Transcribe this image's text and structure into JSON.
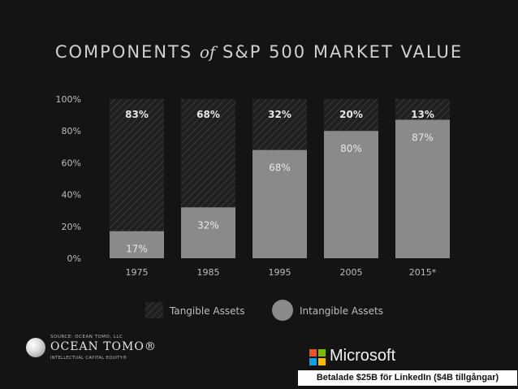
{
  "title": {
    "part1": "COMPONENTS",
    "part2": "of",
    "part3": "S&P 500 MARKET VALUE"
  },
  "chart_data": {
    "type": "bar",
    "title": "COMPONENTS of S&P 500 MARKET VALUE",
    "categories": [
      "1975",
      "1985",
      "1995",
      "2005",
      "2015*"
    ],
    "series": [
      {
        "name": "Intangible Assets",
        "values": [
          17,
          32,
          68,
          80,
          87
        ]
      },
      {
        "name": "Tangible Assets",
        "values": [
          83,
          68,
          32,
          20,
          13
        ]
      }
    ],
    "intangible_labels": [
      "17%",
      "32%",
      "68%",
      "80%",
      "87%"
    ],
    "tangible_labels": [
      "83%",
      "68%",
      "32%",
      "20%",
      "13%"
    ],
    "y_ticks": [
      "100%",
      "80%",
      "60%",
      "40%",
      "20%",
      "0%"
    ],
    "ylim": [
      0,
      100
    ],
    "stacked": true,
    "legend": [
      "Tangible Assets",
      "Intangible Assets"
    ],
    "legend_position": "bottom",
    "colors": {
      "intangible": "#8a8a8a",
      "tangible": "#262626",
      "text": "#e8e8e8",
      "axis": "#bdbdbd"
    }
  },
  "source": {
    "label": "SOURCE: OCEAN TOMO, LLC",
    "brand": "OCEAN TOMO®",
    "tagline": "INTELLECTUAL CAPITAL EQUITY®"
  },
  "microsoft": {
    "name": "Microsoft",
    "caption": "Betalade $25B för LinkedIn ($4B tillgångar)",
    "logo_colors": [
      "#f25022",
      "#7fba00",
      "#00a4ef",
      "#ffb900"
    ]
  }
}
